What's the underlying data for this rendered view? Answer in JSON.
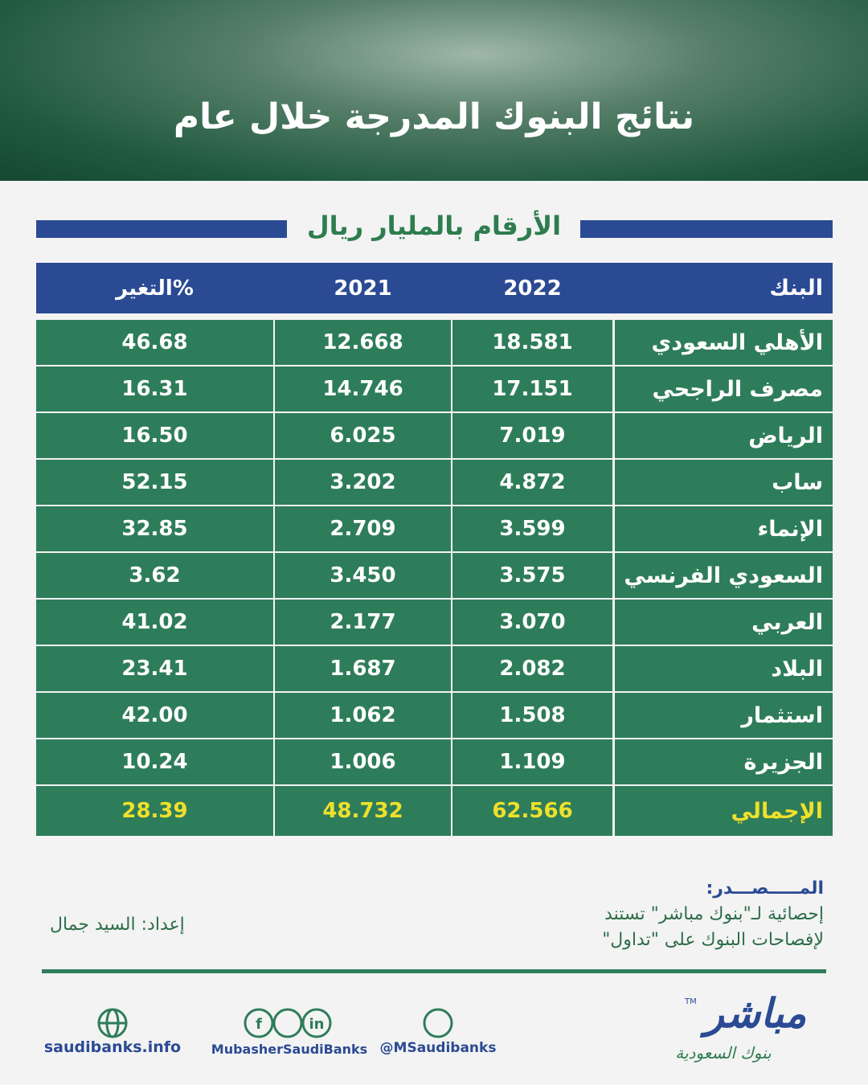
{
  "header": {
    "title": "نتائج البنوك المدرجة خلال عام"
  },
  "subtitle": "الأرقام بالمليار ريال",
  "table": {
    "columns": [
      "البنك",
      "2022",
      "2021",
      "التغير%"
    ],
    "rows": [
      [
        "الأهلي السعودي",
        "18.581",
        "12.668",
        "46.68"
      ],
      [
        "مصرف الراجحي",
        "17.151",
        "14.746",
        "16.31"
      ],
      [
        "الرياض",
        "7.019",
        "6.025",
        "16.50"
      ],
      [
        "ساب",
        "4.872",
        "3.202",
        "52.15"
      ],
      [
        "الإنماء",
        "3.599",
        "2.709",
        "32.85"
      ],
      [
        "السعودي الفرنسي",
        "3.575",
        "3.450",
        "3.62"
      ],
      [
        "العربي",
        "3.070",
        "2.177",
        "41.02"
      ],
      [
        "البلاد",
        "2.082",
        "1.687",
        "23.41"
      ],
      [
        "استثمار",
        "1.508",
        "1.062",
        "42.00"
      ],
      [
        "الجزيرة",
        "1.109",
        "1.006",
        "10.24"
      ]
    ],
    "total": [
      "الإجمالي",
      "62.566",
      "48.732",
      "28.39"
    ]
  },
  "source": {
    "label": "المـــــصـــدر:",
    "lines": [
      "إحصائية لـ\"بنوك مباشر\" تستند",
      "لإفصاحات البنوك على \"تداول\""
    ]
  },
  "prepared_by": "إعداد: السيد جمال",
  "footer": {
    "website": "saudibanks.info",
    "social_handle": "MubasherSaudiBanks",
    "twitter": "@MSaudibanks"
  },
  "logo": {
    "name": "مباشر",
    "mark": "TM",
    "tagline": "بنوك السعودية"
  }
}
